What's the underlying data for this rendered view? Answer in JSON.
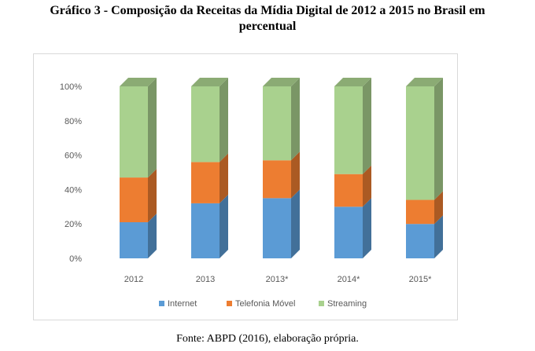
{
  "title": {
    "line1": "Gráfico 3 - Composição da Receitas da Mídia Digital de 2012 a 2015 no Brasil em",
    "line2": "percentual"
  },
  "source": "Fonte: ABPD (2016), elaboração própria.",
  "chart_data": {
    "type": "bar",
    "stacked": true,
    "style": "3d-stacked-column-100-percent",
    "categories": [
      "2012",
      "2013",
      "2013*",
      "2014*",
      "2015*"
    ],
    "series": [
      {
        "name": "Internet",
        "color": "#5b9bd5",
        "values": [
          21,
          32,
          35,
          30,
          20
        ]
      },
      {
        "name": "Telefonia Móvel",
        "color": "#ed7d31",
        "values": [
          26,
          24,
          22,
          19,
          14
        ]
      },
      {
        "name": "Streaming",
        "color": "#a9d18e",
        "values": [
          53,
          44,
          43,
          51,
          66
        ]
      }
    ],
    "ylim": [
      0,
      100
    ],
    "yticks": [
      "0%",
      "20%",
      "40%",
      "60%",
      "80%",
      "100%"
    ],
    "grid": false,
    "legend": "bottom"
  }
}
